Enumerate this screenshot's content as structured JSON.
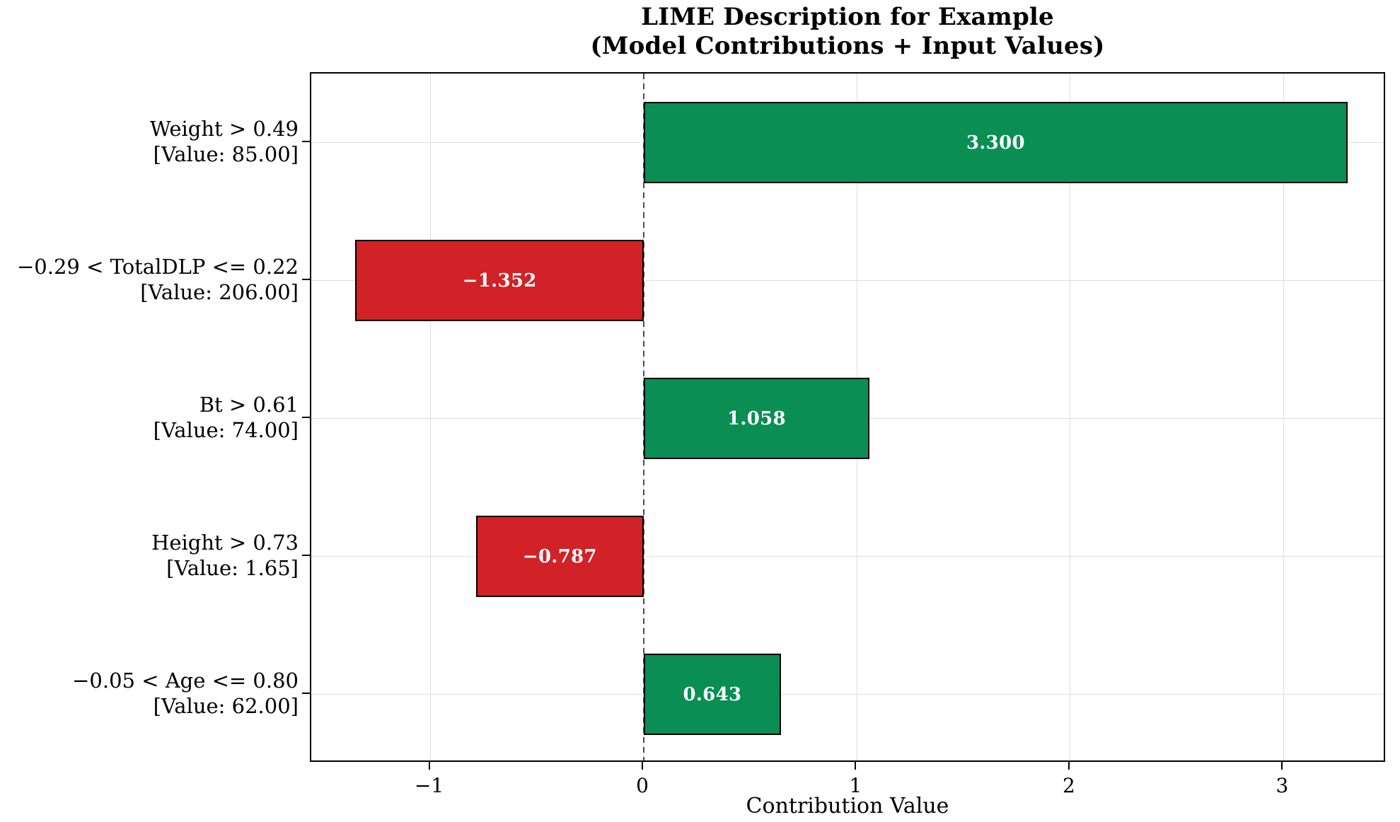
{
  "figure": {
    "title_line1": "LIME Description for Example",
    "title_line2": "(Model Contributions + Input Values)",
    "xlabel": "Contribution Value"
  },
  "colors": {
    "positive_bar": "#0a8e54",
    "negative_bar": "#d02227",
    "bar_edge": "#000000",
    "grid_line": "#dedede",
    "zero_line": "#4d4d4d",
    "axis_frame": "#000000",
    "bar_value_text": "#ffffff"
  },
  "chart_data": {
    "type": "bar",
    "orientation": "horizontal",
    "title": "LIME Description for Example\n(Model Contributions + Input Values)",
    "xlabel": "Contribution Value",
    "ylabel": "",
    "xlim": [
      -1.559,
      3.483
    ],
    "grid": true,
    "zero_line_style": "dashed",
    "x_ticks": [
      {
        "value": -1,
        "label": "−1"
      },
      {
        "value": 0,
        "label": "0"
      },
      {
        "value": 1,
        "label": "1"
      },
      {
        "value": 2,
        "label": "2"
      },
      {
        "value": 3,
        "label": "3"
      }
    ],
    "rows": [
      {
        "feature_condition": "Weight > 0.49",
        "input_value": "[Value: 85.00]",
        "contribution": 3.3,
        "bar_label": "3.300",
        "direction": "positive"
      },
      {
        "feature_condition": "−0.29 < TotalDLP <= 0.22",
        "input_value": "[Value: 206.00]",
        "contribution": -1.352,
        "bar_label": "−1.352",
        "direction": "negative"
      },
      {
        "feature_condition": "Bt > 0.61",
        "input_value": "[Value: 74.00]",
        "contribution": 1.058,
        "bar_label": "1.058",
        "direction": "positive"
      },
      {
        "feature_condition": "Height > 0.73",
        "input_value": "[Value: 1.65]",
        "contribution": -0.787,
        "bar_label": "−0.787",
        "direction": "negative"
      },
      {
        "feature_condition": "−0.05 < Age <= 0.80",
        "input_value": "[Value: 62.00]",
        "contribution": 0.643,
        "bar_label": "0.643",
        "direction": "positive"
      }
    ]
  }
}
